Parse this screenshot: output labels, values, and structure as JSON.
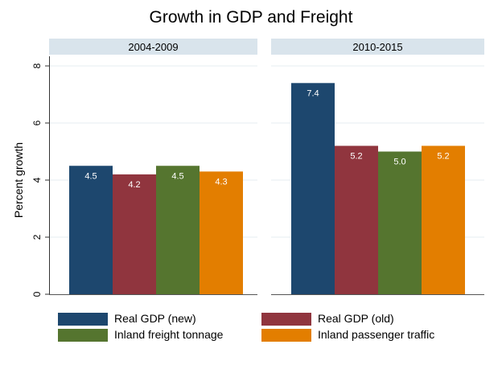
{
  "chart_data": {
    "type": "bar",
    "title": "Growth in GDP and Freight",
    "ylabel": "Percent growth",
    "xlabel": "",
    "ylim": [
      0,
      8
    ],
    "yticks": [
      0,
      2,
      4,
      6,
      8
    ],
    "grid": true,
    "legend_placement": "bottom",
    "panels": [
      "2004-2009",
      "2010-2015"
    ],
    "series": [
      {
        "name": "Real GDP (new)",
        "color": "#1d476e",
        "values": [
          4.5,
          7.4
        ],
        "labels": [
          "4.5",
          "7.4"
        ]
      },
      {
        "name": "Real GDP (old)",
        "color": "#90353e",
        "values": [
          4.2,
          5.2
        ],
        "labels": [
          "4.2",
          "5.2"
        ]
      },
      {
        "name": "Inland freight tonnage",
        "color": "#55752f",
        "values": [
          4.5,
          5.0
        ],
        "labels": [
          "4.5",
          "5.0"
        ]
      },
      {
        "name": "Inland passenger traffic",
        "color": "#e37e00",
        "values": [
          4.3,
          5.2
        ],
        "labels": [
          "4.3",
          "5.2"
        ]
      }
    ],
    "panel_header_color": "#d9e4ec"
  }
}
